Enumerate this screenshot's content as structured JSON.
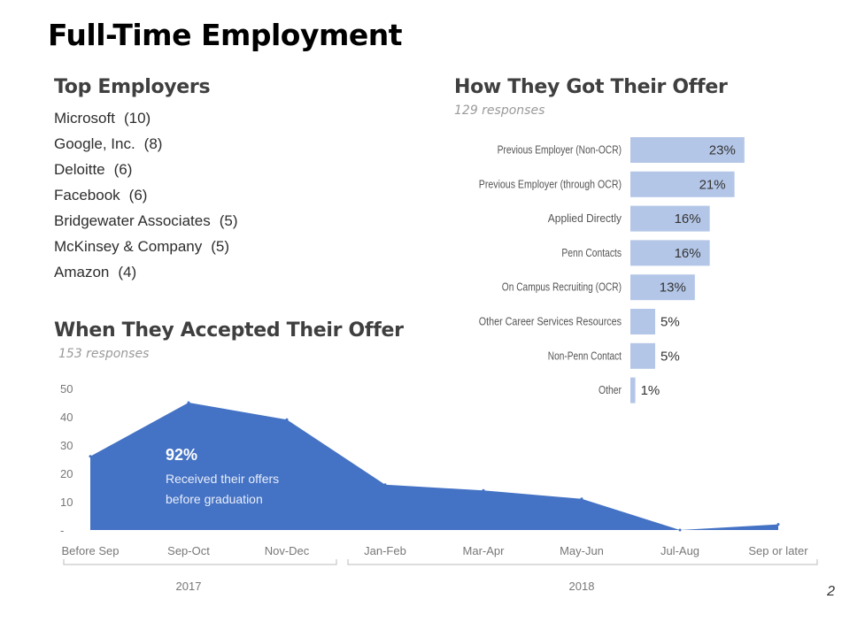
{
  "page": {
    "title": "Full-Time Employment",
    "number": "2"
  },
  "employers": {
    "title": "Top Employers",
    "items": [
      {
        "name": "Microsoft",
        "count": "(10)"
      },
      {
        "name": "Google, Inc.",
        "count": "(8)"
      },
      {
        "name": "Deloitte",
        "count": "(6)"
      },
      {
        "name": "Facebook",
        "count": "(6)"
      },
      {
        "name": "Bridgewater Associates",
        "count": "(5)"
      },
      {
        "name": "McKinsey & Company",
        "count": "(5)"
      },
      {
        "name": "Amazon",
        "count": "(4)"
      }
    ]
  },
  "annotation": {
    "value": "92%",
    "line1": "Received their offers",
    "line2": "before graduation"
  },
  "colors": {
    "area": "#4472c4",
    "bar": "#b4c6e7"
  },
  "chart_data": [
    {
      "type": "bar",
      "orientation": "horizontal",
      "title": "How They Got Their Offer",
      "subtitle": "129 responses",
      "categories": [
        "Previous Employer (Non-OCR)",
        "Previous Employer (through OCR)",
        "Applied Directly",
        "Penn Contacts",
        "On Campus Recruiting (OCR)",
        "Other Career Services Resources",
        "Non-Penn Contact",
        "Other"
      ],
      "values": [
        23,
        21,
        16,
        16,
        13,
        5,
        5,
        1
      ],
      "value_labels": [
        "23%",
        "21%",
        "16%",
        "16%",
        "13%",
        "5%",
        "5%",
        "1%"
      ],
      "unit": "%"
    },
    {
      "type": "area",
      "title": "When They Accepted Their Offer",
      "subtitle": "153 responses",
      "categories": [
        "Before Sep",
        "Sep-Oct",
        "Nov-Dec",
        "Jan-Feb",
        "Mar-Apr",
        "May-Jun",
        "Jul-Aug",
        "Sep or later"
      ],
      "values": [
        26,
        45,
        39,
        16,
        14,
        11,
        0,
        2
      ],
      "y_ticks": [
        "-",
        "10",
        "20",
        "30",
        "40",
        "50"
      ],
      "y_tick_values": [
        0,
        10,
        20,
        30,
        40,
        50
      ],
      "ylim": [
        0,
        50
      ],
      "groups": [
        {
          "label": "2017",
          "from": 0,
          "to": 2
        },
        {
          "label": "2018",
          "from": 3,
          "to": 7
        }
      ]
    }
  ]
}
